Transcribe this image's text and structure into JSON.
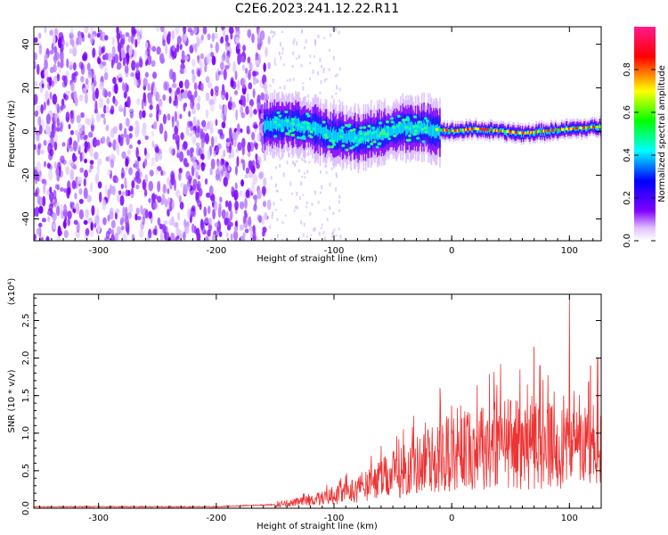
{
  "title": "C2E6.2023.241.12.22.R11",
  "chart_data": [
    {
      "type": "heatmap",
      "xlabel": "Height of straight line (km)",
      "ylabel": "Frequency (Hz)",
      "xlim": [
        -355,
        127
      ],
      "ylim": [
        -50,
        48
      ],
      "xticks": [
        -300,
        -200,
        -100,
        0,
        100
      ],
      "yticks": [
        -40,
        -20,
        0,
        20,
        40
      ],
      "colorbar": {
        "label": "Normalized spectral amplitude",
        "range": [
          0.0,
          1.0
        ],
        "ticks": [
          "0.0",
          "0.2",
          "0.4",
          "0.6",
          "0.8"
        ],
        "colors": [
          "#ffffff",
          "#e0c0ff",
          "#8000ff",
          "#0000ff",
          "#00ffff",
          "#00ff00",
          "#ffff00",
          "#ff0000",
          "#ff1a8c"
        ]
      },
      "center_line": [
        {
          "x": -160,
          "y": 3
        },
        {
          "x": -140,
          "y": 4
        },
        {
          "x": -120,
          "y": 2
        },
        {
          "x": -100,
          "y": -2
        },
        {
          "x": -80,
          "y": -3
        },
        {
          "x": -60,
          "y": -1
        },
        {
          "x": -40,
          "y": 2
        },
        {
          "x": -20,
          "y": 1
        },
        {
          "x": 0,
          "y": 0
        },
        {
          "x": 20,
          "y": 1
        },
        {
          "x": 40,
          "y": 0
        },
        {
          "x": 60,
          "y": -1
        },
        {
          "x": 80,
          "y": 0
        },
        {
          "x": 100,
          "y": 1
        },
        {
          "x": 127,
          "y": 2
        }
      ],
      "noise_region_xmax": -155
    },
    {
      "type": "line",
      "xlabel": "Height of straight line (km)",
      "ylabel": "SNR (10 * v/v)",
      "yscale_label": "(x10⁴)",
      "xlim": [
        -355,
        127
      ],
      "ylim": [
        0.0,
        2.85
      ],
      "xticks": [
        -300,
        -200,
        -100,
        0,
        100
      ],
      "yticks": [
        "0.0",
        "0.5",
        "1.0",
        "1.5",
        "2.0",
        "2.5"
      ],
      "series_color": "#ee3333",
      "envelope": [
        {
          "x": -355,
          "y": 0.02
        },
        {
          "x": -200,
          "y": 0.02
        },
        {
          "x": -150,
          "y": 0.05
        },
        {
          "x": -120,
          "y": 0.12
        },
        {
          "x": -100,
          "y": 0.2
        },
        {
          "x": -80,
          "y": 0.3
        },
        {
          "x": -60,
          "y": 0.45
        },
        {
          "x": -40,
          "y": 0.6
        },
        {
          "x": -20,
          "y": 0.75
        },
        {
          "x": 0,
          "y": 0.85
        },
        {
          "x": 20,
          "y": 0.95
        },
        {
          "x": 40,
          "y": 1.05
        },
        {
          "x": 60,
          "y": 1.0
        },
        {
          "x": 80,
          "y": 0.95
        },
        {
          "x": 100,
          "y": 0.95
        },
        {
          "x": 127,
          "y": 0.9
        }
      ],
      "peaks": [
        {
          "x": -10,
          "y": 1.6
        },
        {
          "x": 70,
          "y": 2.15
        },
        {
          "x": 75,
          "y": 1.9
        },
        {
          "x": 95,
          "y": 1.5
        },
        {
          "x": 100,
          "y": 2.82
        },
        {
          "x": 118,
          "y": 1.9
        },
        {
          "x": 124,
          "y": 2.0
        }
      ]
    }
  ]
}
